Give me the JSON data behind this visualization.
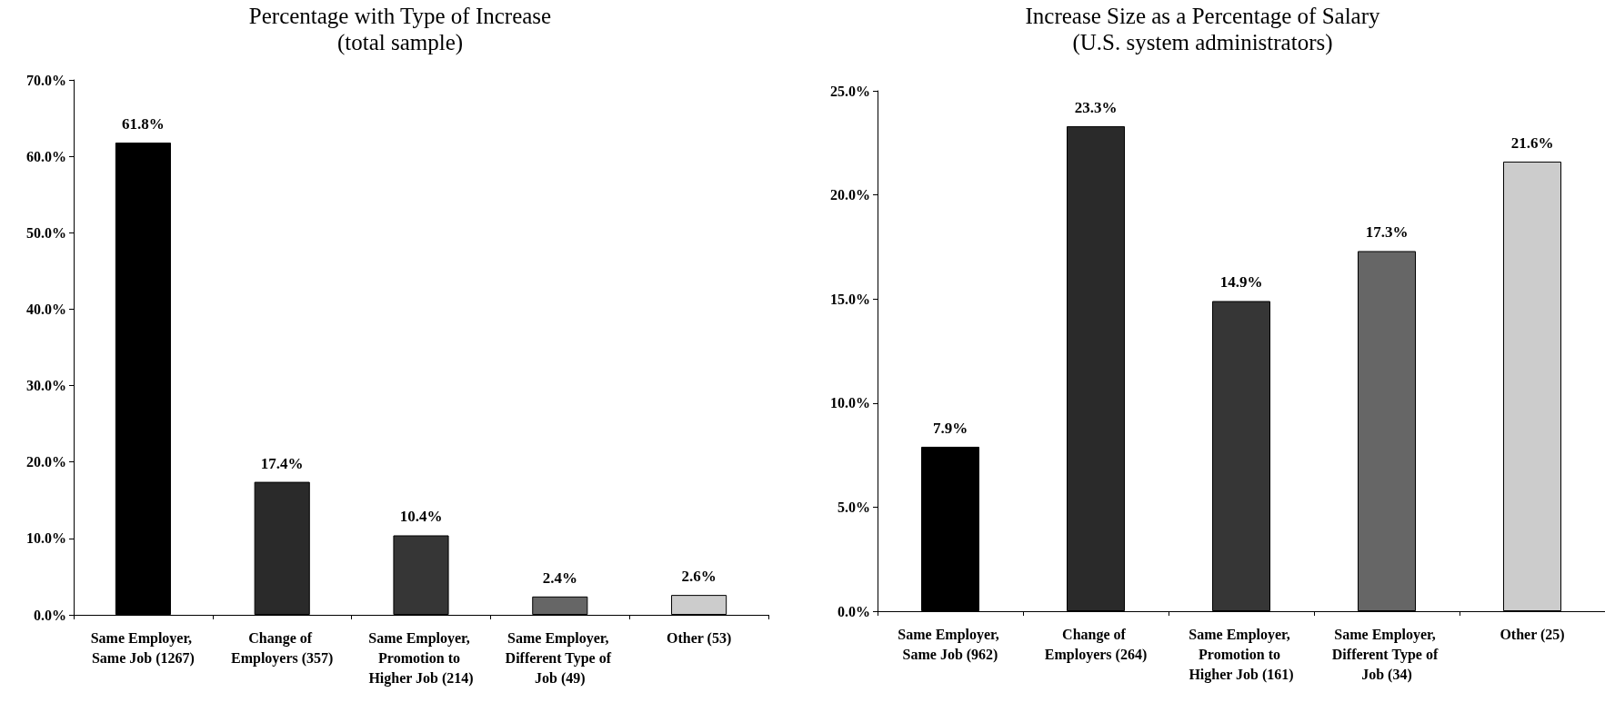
{
  "chart_data": [
    {
      "type": "bar",
      "title": "Percentage with Type of Increase",
      "subtitle": "(total sample)",
      "categories": [
        "Same Employer, Same Job (1267)",
        "Change of Employers (357)",
        "Same Employer, Promotion to Higher Job (214)",
        "Same Employer, Different Type of Job (49)",
        "Other (53)"
      ],
      "values": [
        61.8,
        17.4,
        10.4,
        2.4,
        2.6
      ],
      "colors": [
        "#000000",
        "#2a2a2a",
        "#363636",
        "#666666",
        "#cccccc"
      ],
      "value_labels": [
        "61.8%",
        "17.4%",
        "10.4%",
        "2.4%",
        "2.6%"
      ],
      "ylim": [
        0,
        70
      ],
      "yticks": [
        {
          "value": 0,
          "label": "0.0%"
        },
        {
          "value": 10,
          "label": "10.0%"
        },
        {
          "value": 20,
          "label": "20.0%"
        },
        {
          "value": 30,
          "label": "30.0%"
        },
        {
          "value": 40,
          "label": "40.0%"
        },
        {
          "value": 50,
          "label": "50.0%"
        },
        {
          "value": 60,
          "label": "60.0%"
        },
        {
          "value": 70,
          "label": "70.0%"
        }
      ]
    },
    {
      "type": "bar",
      "title": "Increase Size as a Percentage of Salary",
      "subtitle": "(U.S. system administrators)",
      "categories": [
        "Same Employer, Same Job (962)",
        "Change of Employers (264)",
        "Same Employer, Promotion to Higher Job (161)",
        "Same Employer, Different Type of Job (34)",
        "Other (25)"
      ],
      "values": [
        7.9,
        23.3,
        14.9,
        17.3,
        21.6
      ],
      "colors": [
        "#000000",
        "#2a2a2a",
        "#363636",
        "#666666",
        "#cccccc"
      ],
      "value_labels": [
        "7.9%",
        "23.3%",
        "14.9%",
        "17.3%",
        "21.6%"
      ],
      "ylim": [
        0,
        25
      ],
      "yticks": [
        {
          "value": 0,
          "label": "0.0%"
        },
        {
          "value": 5,
          "label": "5.0%"
        },
        {
          "value": 10,
          "label": "10.0%"
        },
        {
          "value": 15,
          "label": "15.0%"
        },
        {
          "value": 20,
          "label": "20.0%"
        },
        {
          "value": 25,
          "label": "25.0%"
        }
      ]
    }
  ]
}
